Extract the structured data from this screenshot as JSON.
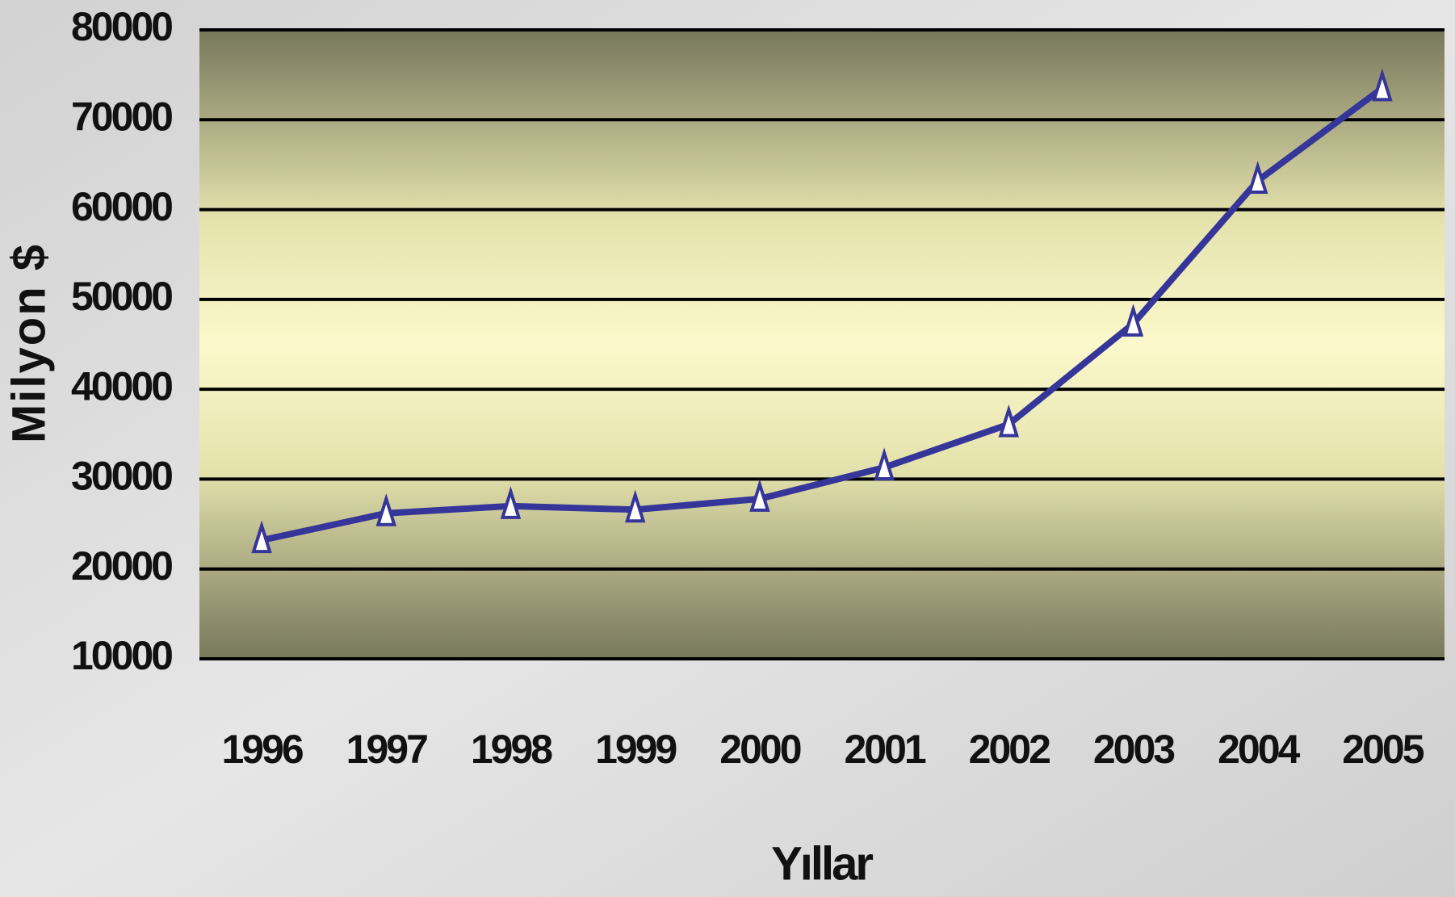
{
  "chart_data": {
    "type": "line",
    "categories": [
      "1996",
      "1997",
      "1998",
      "1999",
      "2000",
      "2001",
      "2002",
      "2003",
      "2004",
      "2005"
    ],
    "series": [
      {
        "name": "Milyon $",
        "color": "#35359a",
        "values": [
          23200,
          26200,
          27000,
          26600,
          27800,
          31300,
          36100,
          47300,
          63200,
          73500
        ]
      }
    ],
    "ylim": [
      10000,
      80000
    ],
    "yticks": [
      10000,
      20000,
      30000,
      40000,
      50000,
      60000,
      70000,
      80000
    ],
    "grid": true,
    "y_label": "Milyon $",
    "x_label": "Yıllar"
  }
}
